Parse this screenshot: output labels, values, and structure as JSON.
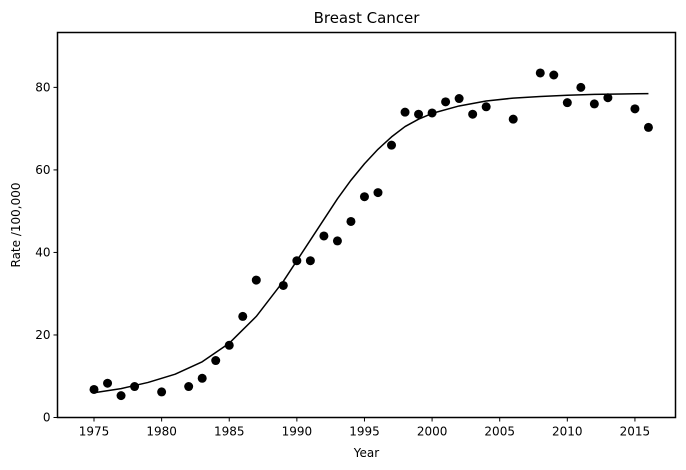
{
  "chart_data": {
    "type": "scatter",
    "title": "Breast Cancer",
    "xlabel": "Year",
    "ylabel": "Rate /100,000",
    "xlim": [
      1972.3,
      2018.0
    ],
    "ylim": [
      0,
      93.3
    ],
    "xticks": [
      1975,
      1980,
      1985,
      1990,
      1995,
      2000,
      2005,
      2010,
      2015
    ],
    "yticks": [
      0,
      20,
      40,
      60,
      80
    ],
    "grid": false,
    "legend": "none",
    "colors": {
      "points": "#000000",
      "curve": "#000000"
    },
    "series": [
      {
        "type": "scatter",
        "x": [
          1975,
          1976,
          1977,
          1978,
          1980,
          1982,
          1983,
          1984,
          1985,
          1986,
          1987,
          1989,
          1990,
          1991,
          1992,
          1993,
          1994,
          1995,
          1996,
          1997,
          1998,
          1999,
          2000,
          2001,
          2002,
          2003,
          2004,
          2006,
          2008,
          2009,
          2010,
          2011,
          2012,
          2013,
          2015,
          2016
        ],
        "y": [
          6.8,
          8.3,
          5.3,
          7.5,
          6.2,
          7.5,
          9.5,
          13.8,
          17.5,
          24.5,
          33.3,
          32.0,
          38.0,
          38.0,
          44.0,
          42.8,
          47.5,
          53.5,
          54.5,
          66.0,
          74.0,
          73.5,
          73.8,
          76.5,
          77.3,
          73.5,
          75.3,
          72.3,
          83.5,
          83.0,
          76.3,
          80.0,
          76.0,
          77.5,
          74.8,
          70.3
        ]
      },
      {
        "type": "line",
        "x": [
          1975,
          1977,
          1979,
          1981,
          1983,
          1985,
          1987,
          1989,
          1990,
          1991,
          1992,
          1993,
          1994,
          1995,
          1996,
          1997,
          1998,
          1999,
          2000,
          2002,
          2004,
          2006,
          2008,
          2010,
          2012,
          2014,
          2016
        ],
        "y": [
          6.0,
          7.0,
          8.5,
          10.5,
          13.5,
          18.0,
          24.5,
          33.0,
          38.0,
          43.0,
          48.0,
          53.0,
          57.5,
          61.5,
          65.0,
          68.0,
          70.5,
          72.3,
          73.7,
          75.5,
          76.7,
          77.4,
          77.8,
          78.1,
          78.3,
          78.4,
          78.5
        ]
      }
    ]
  }
}
